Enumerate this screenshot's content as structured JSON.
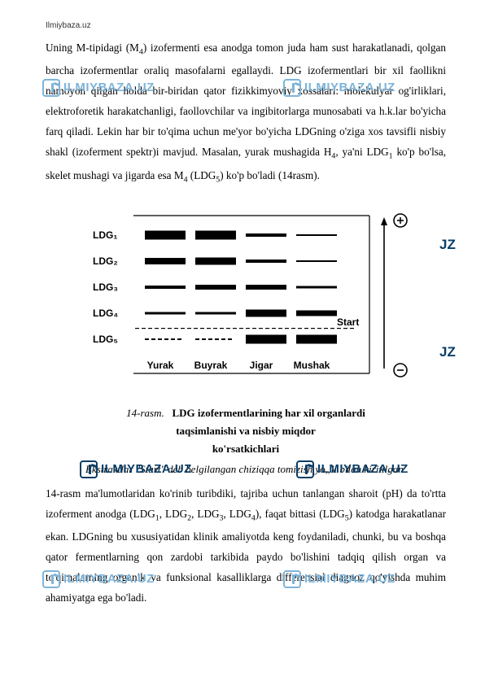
{
  "site": "Ilmiybaza.uz",
  "paragraph1_parts": [
    "Uning M-tipidagi (M",
    "4",
    ") izofermenti esa anodga tomon juda ham sust harakatlanadi, qolgan barcha izofermentlar oraliq masofalarni egallaydi. LDG izofermentlari bir xil faollikni namoyon qilgan holda bir-biridan qator fizikkimyoviy xossalari: molekulyar og'irliklari, elektroforetik harakatchanligi, faollovchilar va ingibitorlarga munosabati va h.k.lar bo'yicha farq qiladi. Lekin har bir to'qima uchun me'yor bo'yicha LDGning o'ziga xos tavsifli nisbiy shakl (izoferment spektr)i mavjud. Masalan, yurak mushagida H",
    "4",
    ", ya'ni LDG",
    "1",
    " ko'p bo'lsa, skelet mushagi va jigarda esa M",
    "4",
    " (LDG",
    "5",
    ") ko'p bo'ladi (14rasm)."
  ],
  "figure": {
    "rows": [
      "LDG₁",
      "LDG₂",
      "LDG₃",
      "LDG₄",
      "LDG₅"
    ],
    "cols": [
      "Yurak",
      "Buyrak",
      "Jigar",
      "Mushak"
    ],
    "start_label": "Start",
    "plus": "⊕",
    "minus": "⊖",
    "band_thickness": [
      [
        11,
        11,
        4,
        2
      ],
      [
        8,
        9,
        4,
        2
      ],
      [
        4,
        6,
        6,
        3
      ],
      [
        3,
        3,
        9,
        7
      ],
      [
        2,
        2,
        11,
        11
      ]
    ],
    "dashed_row": 4,
    "colors": {
      "band": "#000000",
      "text": "#000000",
      "border": "#000000",
      "white": "#ffffff"
    }
  },
  "caption": {
    "fig_no": "14-rasm.",
    "line1": "LDG izofermentlarining har xil organlardi",
    "line2": "taqsimlanishi va nisbiy miqdor",
    "line3": "ko'rsatkichlari"
  },
  "subtitle": "Ekstraktlar \"Start\" deb belgilangan chiziqqa tomizish yo„li bilan kiritilgan.",
  "paragraph2_parts": [
    "14-rasm ma'lumotlaridan ko'rinib turibdiki, tajriba uchun tanlangan sharoit (pH) da to'rtta izoferment anodga (LDG",
    "1",
    ", LDG",
    "2",
    ", LDG",
    "3",
    ", LDG",
    "4",
    "), faqat bittasi (LDG",
    "5",
    ") katodga harakatlanar ekan. LDGning bu xususiyatidan klinik amaliyotda keng foydaniladi, chunki, bu va boshqa qator fermentlarning qon zardobi tarkibida paydo bo'lishini tadqiq qilish organ va to'qimalarning organik va funksional kasalliklarga differensial diagnoz qo'yishda muhim ahamiyatga ega bo'ladi."
  ],
  "watermarks": {
    "text": "ILMIYBAZA.UZ",
    "partial": "JZ",
    "dark_color": "#0a3e66",
    "light_color": "#7db4d9"
  }
}
